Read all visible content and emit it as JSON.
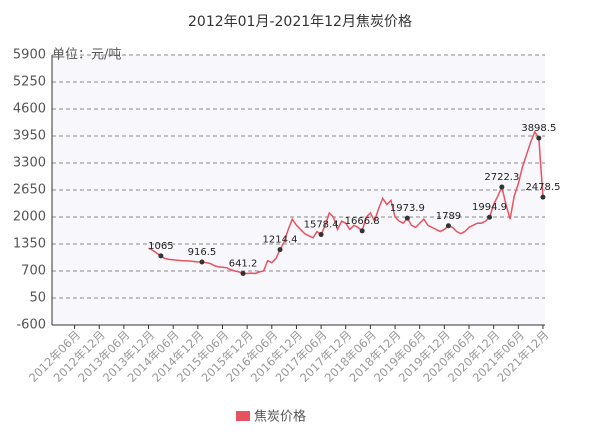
{
  "chart_data": {
    "type": "line",
    "title": "2012年01月-2021年12月焦炭价格",
    "y_label": "单位：元/吨",
    "categories": [
      null,
      null,
      null,
      null,
      null,
      "2012年06月",
      null,
      null,
      null,
      null,
      null,
      "2012年12月",
      null,
      null,
      null,
      null,
      null,
      "2013年06月",
      null,
      null,
      null,
      null,
      null,
      "2013年12月",
      null,
      null,
      null,
      null,
      null,
      "2014年06月",
      null,
      null,
      null,
      null,
      null,
      "2014年12月",
      null,
      null,
      null,
      null,
      null,
      "2015年06月",
      null,
      null,
      null,
      null,
      null,
      "2015年12月",
      null,
      null,
      null,
      null,
      null,
      "2016年06月",
      null,
      null,
      null,
      null,
      null,
      "2016年12月",
      null,
      null,
      null,
      null,
      null,
      "2017年06月",
      null,
      null,
      null,
      null,
      null,
      "2017年12月",
      null,
      null,
      null,
      null,
      null,
      "2018年06月",
      null,
      null,
      null,
      null,
      null,
      "2018年12月",
      null,
      null,
      null,
      null,
      null,
      "2019年06月",
      null,
      null,
      null,
      null,
      null,
      "2019年12月",
      null,
      null,
      null,
      null,
      null,
      "2020年06月",
      null,
      null,
      null,
      null,
      null,
      "2020年12月",
      null,
      null,
      null,
      null,
      null,
      "2021年06月",
      null,
      null,
      null,
      null,
      null,
      "2021年12月"
    ],
    "series": [
      {
        "name": "焦炭价格",
        "color": "#e8535f",
        "values": [
          null,
          null,
          null,
          null,
          null,
          null,
          null,
          null,
          null,
          null,
          null,
          null,
          null,
          null,
          null,
          null,
          null,
          null,
          null,
          null,
          null,
          null,
          null,
          1250,
          1200,
          1130,
          1065,
          1000,
          980,
          970,
          960,
          950,
          945,
          940,
          930,
          920,
          916.5,
          900,
          880,
          830,
          800,
          790,
          780,
          730,
          700,
          680,
          641.2,
          640,
          650,
          640,
          680,
          700,
          950,
          900,
          1000,
          1214.4,
          1400,
          1700,
          1950,
          1800,
          1700,
          1600,
          1550,
          1500,
          1650,
          1578.4,
          1800,
          2100,
          2000,
          1700,
          1900,
          1850,
          1700,
          1800,
          1750,
          1666.8,
          2000,
          2100,
          1900,
          2200,
          2450,
          2300,
          2400,
          2000,
          1900,
          1850,
          1973.9,
          1800,
          1750,
          1850,
          1950,
          1800,
          1750,
          1700,
          1650,
          1700,
          1789,
          1750,
          1650,
          1600,
          1650,
          1750,
          1800,
          1850,
          1850,
          1900,
          1994.9,
          2300,
          2500,
          2722.3,
          2300,
          1950,
          2500,
          2800,
          3200,
          3500,
          3800,
          4050,
          3898.5,
          2478.5
        ],
        "value_labels": [
          null,
          null,
          null,
          null,
          null,
          null,
          null,
          null,
          null,
          null,
          null,
          null,
          null,
          null,
          null,
          null,
          null,
          null,
          null,
          null,
          null,
          null,
          null,
          null,
          null,
          null,
          "1065",
          null,
          null,
          null,
          null,
          null,
          null,
          null,
          null,
          null,
          "916.5",
          null,
          null,
          null,
          null,
          null,
          null,
          null,
          null,
          null,
          "641.2",
          null,
          null,
          null,
          null,
          null,
          null,
          null,
          null,
          "1214.4",
          null,
          null,
          null,
          null,
          null,
          null,
          null,
          null,
          null,
          "1578.4",
          null,
          null,
          null,
          null,
          null,
          null,
          null,
          null,
          null,
          "1666.8",
          null,
          null,
          null,
          null,
          null,
          null,
          null,
          null,
          null,
          null,
          "1973.9",
          null,
          null,
          null,
          null,
          null,
          null,
          null,
          null,
          null,
          "1789",
          null,
          null,
          null,
          null,
          null,
          null,
          null,
          null,
          null,
          "1994.9",
          null,
          null,
          "2722.3",
          null,
          null,
          null,
          null,
          null,
          null,
          null,
          null,
          "3898.5",
          "2478.5"
        ]
      }
    ],
    "ylim": [
      -600,
      5900
    ],
    "yticks": [
      -600,
      50,
      700,
      1350,
      2000,
      2650,
      3300,
      3950,
      4600,
      5250,
      5900
    ],
    "grid": true
  }
}
